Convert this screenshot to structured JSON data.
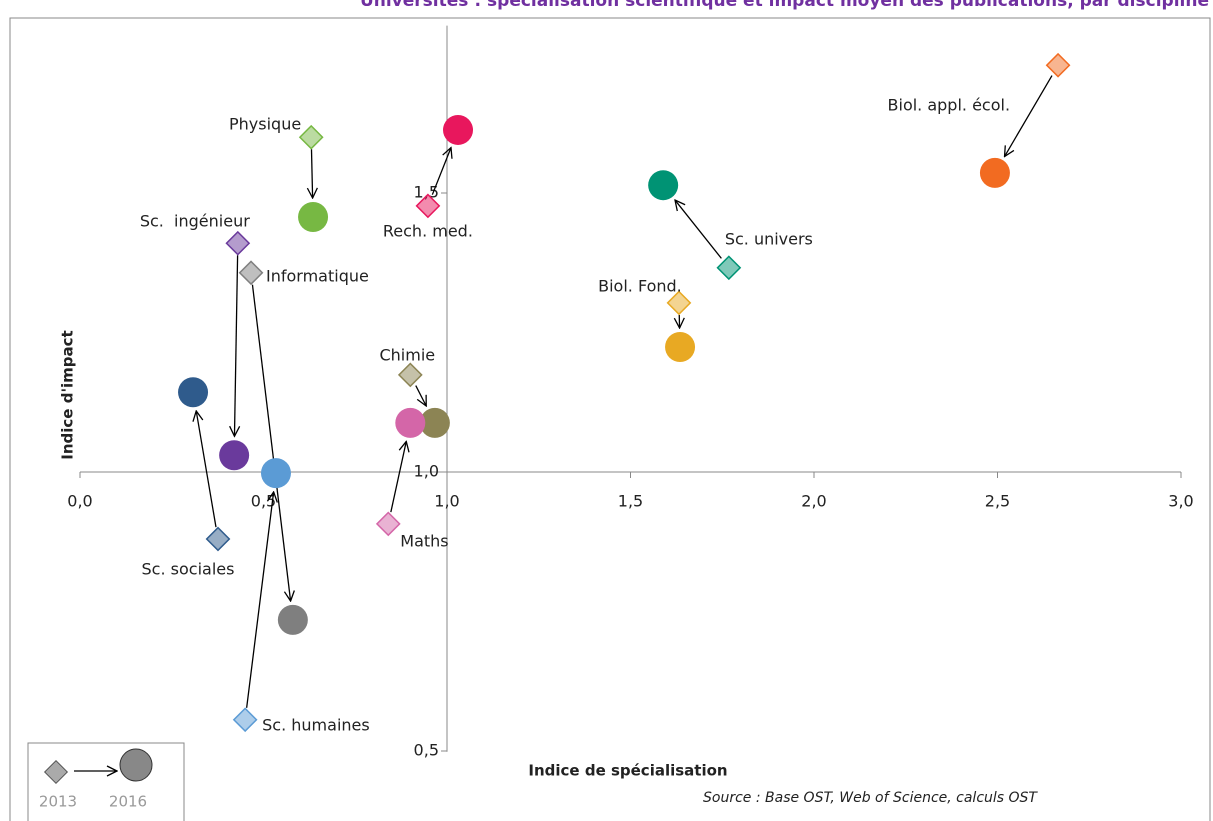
{
  "chart_data": {
    "type": "scatter",
    "title": "Universités : spécialisation scientifique et impact moyen des publications, par discipline",
    "x_label": "Indice de spécialisation",
    "y_label": "Indice d'impact",
    "source": "Source : Base OST, Web of Science, calculs OST",
    "legend_labels": [
      "2013",
      "2016"
    ],
    "xlim": [
      0,
      3
    ],
    "ylim": [
      0.4,
      1.8
    ],
    "xticks": [
      {
        "value": 0,
        "label": "0,0"
      },
      {
        "value": 0.5,
        "label": "0,5"
      },
      {
        "value": 1,
        "label": "1,0"
      },
      {
        "value": 1.5,
        "label": "1,5"
      },
      {
        "value": 2,
        "label": "2,0"
      },
      {
        "value": 2.5,
        "label": "2,5"
      },
      {
        "value": 3,
        "label": "3,0"
      }
    ],
    "yticks": [
      {
        "value": 0.5,
        "label": "0,5"
      },
      {
        "value": 1,
        "label": "1,0"
      },
      {
        "value": 1.5,
        "label": "1,5"
      }
    ],
    "series": [
      {
        "name": "Physique",
        "color": "#77b843",
        "x": [
          0.63,
          0.635
        ],
        "values": [
          1.6,
          1.457
        ]
      },
      {
        "name": "Rech. med.",
        "color": "#e8175d",
        "x": [
          0.948,
          1.03
        ],
        "values": [
          1.477,
          1.613
        ]
      },
      {
        "name": "Sc.  ingénieur",
        "color": "#6a3a9c",
        "x": [
          0.43,
          0.42
        ],
        "values": [
          1.41,
          1.03
        ]
      },
      {
        "name": "Informatique",
        "color": "#7f7f7f",
        "x": [
          0.466,
          0.58
        ],
        "values": [
          1.357,
          0.735
        ]
      },
      {
        "name": "Sc. sociales",
        "color": "#2f5b8c",
        "x": [
          0.376,
          0.308
        ],
        "values": [
          0.88,
          1.143
        ]
      },
      {
        "name": "Sc. humaines",
        "color": "#5b9bd5",
        "x": [
          0.45,
          0.534
        ],
        "values": [
          0.556,
          0.998
        ]
      },
      {
        "name": "Chimie",
        "color": "#8c8454",
        "x": [
          0.9,
          0.967
        ],
        "values": [
          1.174,
          1.088
        ]
      },
      {
        "name": "Maths",
        "color": "#d466a8",
        "x": [
          0.84,
          0.9
        ],
        "values": [
          0.907,
          1.088
        ]
      },
      {
        "name": "Sc. univers",
        "color": "#009374",
        "x": [
          1.768,
          1.589
        ],
        "values": [
          1.366,
          1.514
        ]
      },
      {
        "name": "Biol. Fond.",
        "color": "#e8a923",
        "x": [
          1.632,
          1.635
        ],
        "values": [
          1.303,
          1.224
        ]
      },
      {
        "name": "Biol. appl. écol.",
        "color": "#f26b21",
        "x": [
          2.665,
          2.493
        ],
        "values": [
          1.729,
          1.536
        ]
      }
    ]
  }
}
